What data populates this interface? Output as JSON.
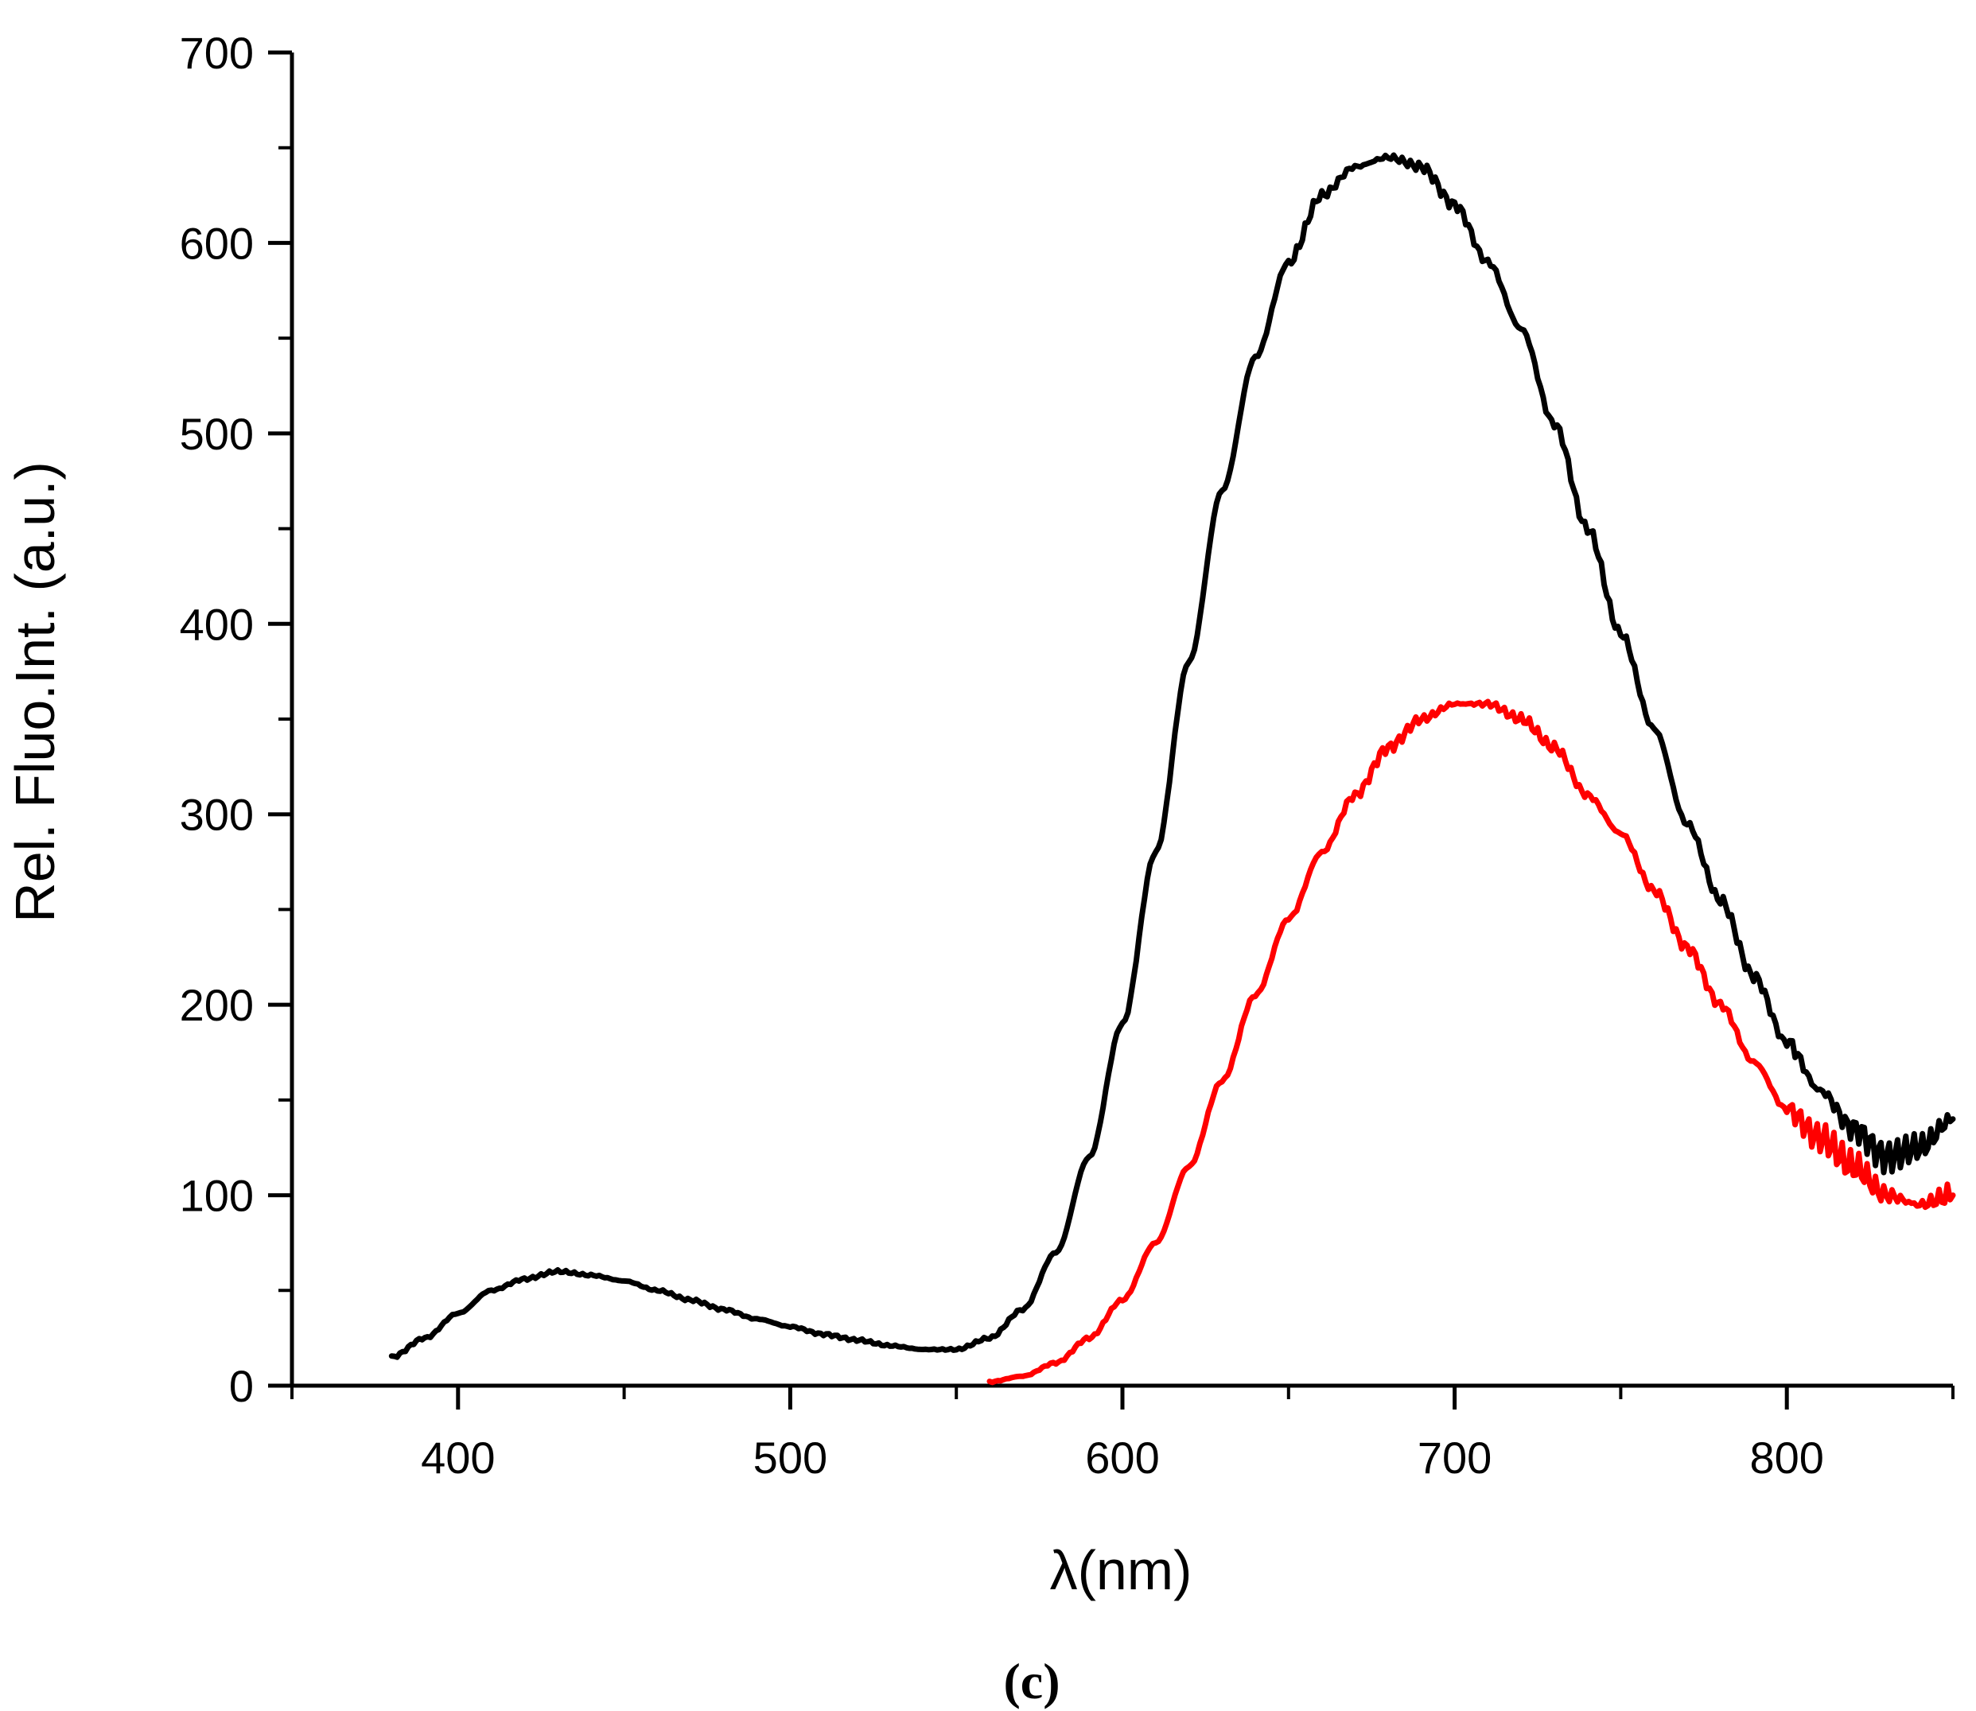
{
  "chart_data": {
    "type": "line",
    "title": "",
    "xlabel": "λ(nm)",
    "ylabel": "Rel. Fluo.Int. (a.u.)",
    "panel_label": "(c)",
    "xlim": [
      350,
      850
    ],
    "ylim": [
      0,
      700
    ],
    "x_ticks": [
      400,
      500,
      600,
      700,
      800
    ],
    "y_ticks": [
      0,
      100,
      200,
      300,
      400,
      500,
      600,
      700
    ],
    "grid": false,
    "legend": "none",
    "series": [
      {
        "color": "#000000",
        "x": [
          380,
          390,
          400,
          410,
          420,
          430,
          440,
          450,
          460,
          470,
          480,
          490,
          500,
          510,
          520,
          530,
          540,
          550,
          560,
          570,
          580,
          590,
          600,
          610,
          620,
          630,
          640,
          650,
          660,
          670,
          680,
          690,
          700,
          710,
          720,
          730,
          740,
          750,
          760,
          770,
          780,
          790,
          800,
          810,
          820,
          830,
          840,
          850
        ],
        "y": [
          15,
          25,
          38,
          50,
          56,
          60,
          58,
          55,
          50,
          45,
          40,
          35,
          31,
          27,
          24,
          21,
          19,
          19,
          25,
          40,
          70,
          120,
          190,
          280,
          380,
          470,
          540,
          590,
          625,
          640,
          645,
          640,
          620,
          590,
          555,
          505,
          450,
          395,
          345,
          295,
          255,
          215,
          180,
          155,
          135,
          120,
          125,
          140
        ]
      },
      {
        "color": "#ff0000",
        "x": [
          560,
          570,
          580,
          590,
          600,
          610,
          620,
          630,
          640,
          650,
          660,
          670,
          680,
          690,
          700,
          710,
          720,
          730,
          740,
          750,
          760,
          770,
          780,
          790,
          800,
          810,
          820,
          830,
          840,
          850
        ],
        "y": [
          2,
          5,
          12,
          25,
          45,
          75,
          115,
          160,
          205,
          245,
          280,
          310,
          335,
          350,
          358,
          358,
          350,
          335,
          310,
          290,
          260,
          230,
          200,
          170,
          145,
          130,
          115,
          100,
          95,
          100
        ]
      }
    ]
  }
}
